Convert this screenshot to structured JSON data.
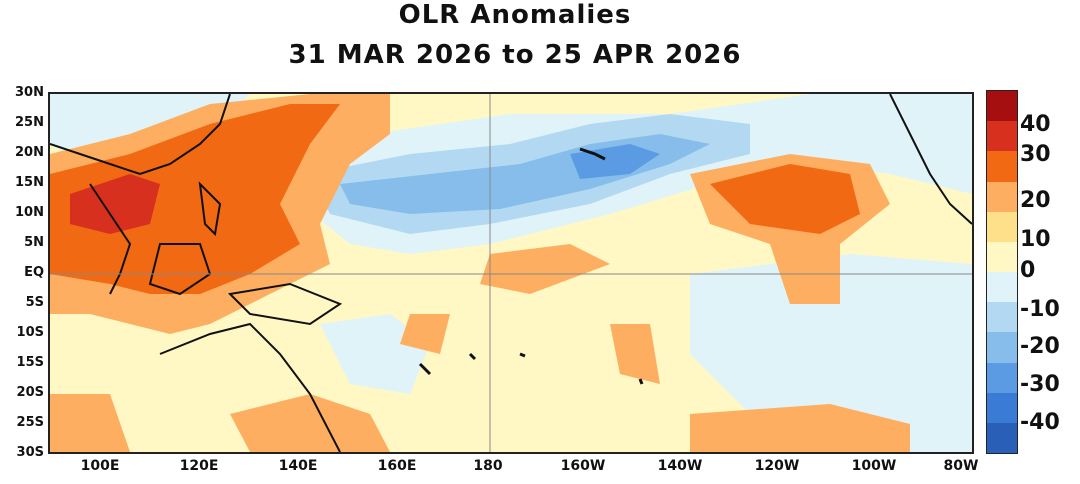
{
  "title": {
    "line1": "OLR Anomalies",
    "line2": "31 MAR 2026 to 25 APR 2026"
  },
  "map": {
    "projection": "tropical Indo-Pacific",
    "lat_labels": [
      "30N",
      "25N",
      "20N",
      "15N",
      "10N",
      "5N",
      "EQ",
      "5S",
      "10S",
      "15S",
      "20S",
      "25S",
      "30S"
    ],
    "lon_labels": [
      "100E",
      "120E",
      "140E",
      "160E",
      "180",
      "160W",
      "140W",
      "120W",
      "100W",
      "80W"
    ]
  },
  "colorbar": {
    "labels": [
      "40",
      "30",
      "20",
      "10",
      "0",
      "-10",
      "-20",
      "-30",
      "-40"
    ],
    "colors": [
      "#a50f0f",
      "#d7301f",
      "#f16913",
      "#fdae61",
      "#fee08b",
      "#fff8c4",
      "#e0f3f8",
      "#b3d9f2",
      "#86bdeb",
      "#5a9be3",
      "#3a7bd5",
      "#2a5fb8"
    ]
  }
}
